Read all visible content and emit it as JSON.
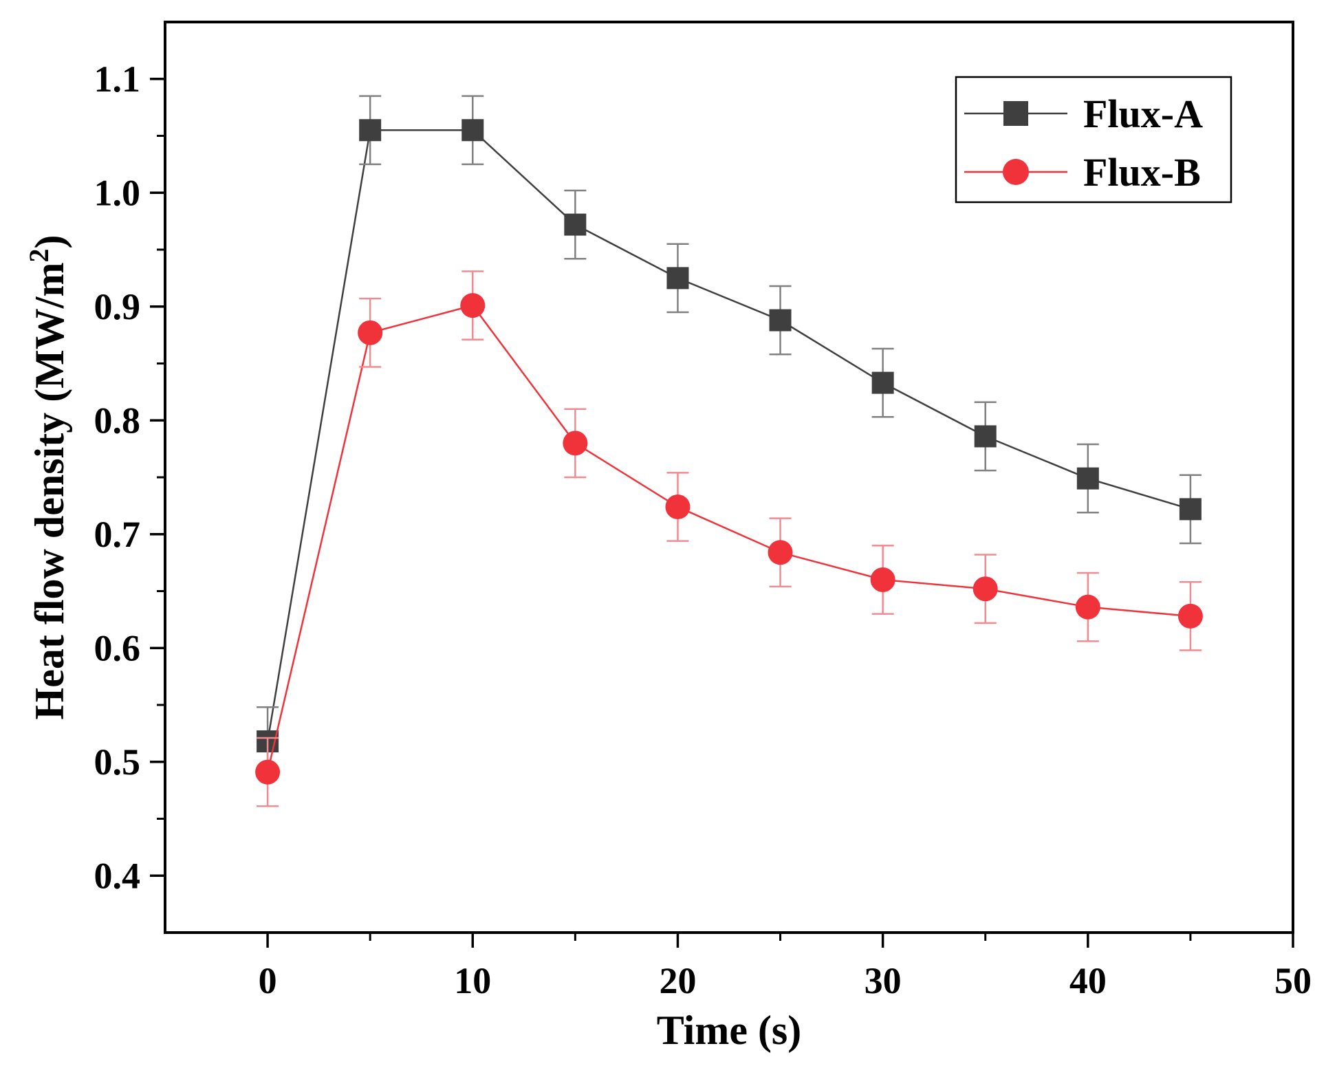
{
  "chart_data": {
    "type": "line",
    "xlabel": "Time (s)",
    "ylabel_main": "Heat flow density (MW/m",
    "ylabel_sup": "2",
    "ylabel_close": ")",
    "xlim": [
      -5,
      50
    ],
    "ylim": [
      0.35,
      1.15
    ],
    "xticks": [
      0,
      10,
      20,
      30,
      40,
      50
    ],
    "xtick_labels": [
      "0",
      "10",
      "20",
      "30",
      "40",
      "50"
    ],
    "yticks": [
      0.4,
      0.5,
      0.6,
      0.7,
      0.8,
      0.9,
      1.0,
      1.1
    ],
    "ytick_labels": [
      "0.4",
      "0.5",
      "0.6",
      "0.7",
      "0.8",
      "0.9",
      "1.0",
      "1.1"
    ],
    "grid": false,
    "legend_position": "top-right",
    "x": [
      0,
      5,
      10,
      15,
      20,
      25,
      30,
      35,
      40,
      45
    ],
    "series": [
      {
        "name": "Flux-A",
        "marker": "square",
        "color": "#3f3f3f",
        "error_color": "#808080",
        "values": [
          0.518,
          1.055,
          1.055,
          0.972,
          0.925,
          0.888,
          0.833,
          0.786,
          0.749,
          0.722
        ],
        "errors": [
          0.03,
          0.03,
          0.03,
          0.03,
          0.03,
          0.03,
          0.03,
          0.03,
          0.03,
          0.03
        ]
      },
      {
        "name": "Flux-B",
        "marker": "circle",
        "color": "#f0333b",
        "error_color": "#f28a8f",
        "values": [
          0.491,
          0.877,
          0.901,
          0.78,
          0.724,
          0.684,
          0.66,
          0.652,
          0.636,
          0.628
        ],
        "errors": [
          0.03,
          0.03,
          0.03,
          0.03,
          0.03,
          0.03,
          0.03,
          0.03,
          0.03,
          0.03
        ]
      }
    ]
  }
}
